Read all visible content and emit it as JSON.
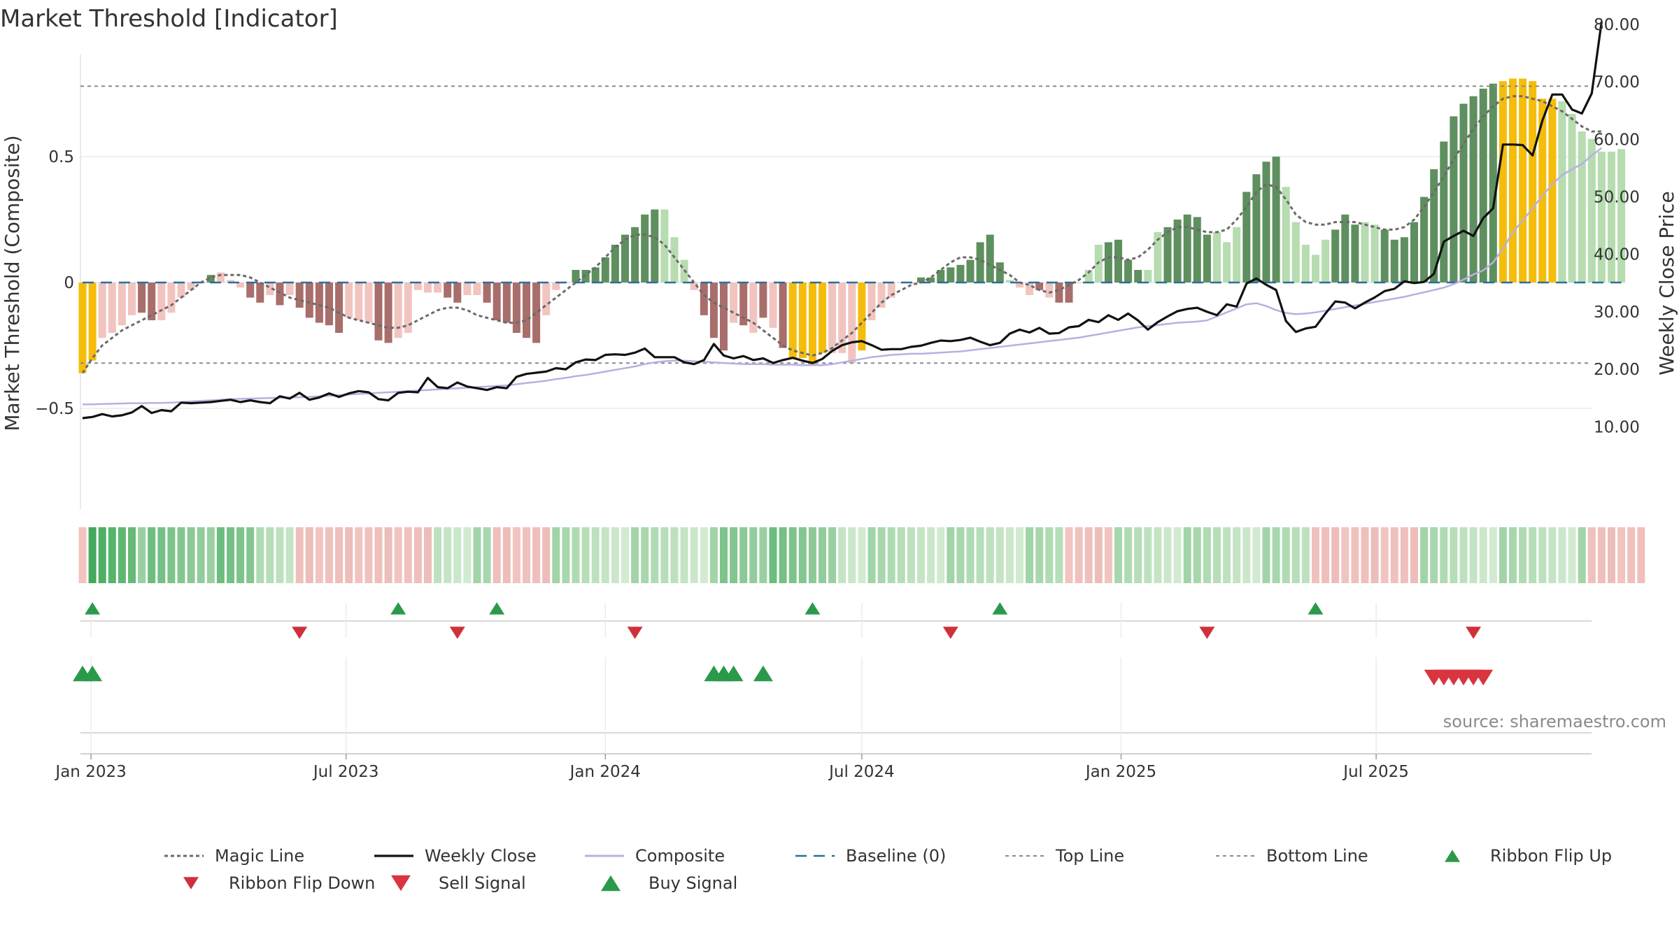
{
  "colors": {
    "strong_positive": "#5e8f5e",
    "weak_positive": "#b6dcb0",
    "strong_negative": "#a86e6b",
    "weak_negative": "#f1c4c0",
    "extreme": "#f5bd0b",
    "weekly_close": "#111111",
    "composite_line": "#b7b0e2",
    "magic_line": "#6a6a6a",
    "baseline": "#2d6e96",
    "threshold": "#8a8a8a",
    "buy": "#2a9a4a",
    "sell": "#d9353f"
  },
  "chart_data": {
    "type": "bar",
    "title": "Market Threshold [Indicator]",
    "ylabel": "Market Threshold (Composite)",
    "y2label": "Weekly Close Price",
    "ylim": [
      -0.9,
      0.9
    ],
    "y2lim": [
      5,
      85
    ],
    "yticks": [
      {
        "v": 0.5,
        "label": "0.5"
      },
      {
        "v": 0,
        "label": "0"
      },
      {
        "v": -0.5,
        "label": "−0.5"
      }
    ],
    "y2ticks": [
      {
        "v": 80,
        "label": "80.00"
      },
      {
        "v": 70,
        "label": "70.00"
      },
      {
        "v": 60,
        "label": "60.00"
      },
      {
        "v": 50,
        "label": "50.00"
      },
      {
        "v": 40,
        "label": "40.00"
      },
      {
        "v": 30,
        "label": "30.00"
      },
      {
        "v": 20,
        "label": "20.00"
      },
      {
        "v": 10,
        "label": "10.00"
      }
    ],
    "xticks": [
      {
        "date": "2023-01-01",
        "label": "Jan 2023"
      },
      {
        "date": "2023-07-01",
        "label": "Jul 2023"
      },
      {
        "date": "2024-01-01",
        "label": "Jan 2024"
      },
      {
        "date": "2024-07-01",
        "label": "Jul 2024"
      },
      {
        "date": "2025-01-01",
        "label": "Jan 2025"
      },
      {
        "date": "2025-07-01",
        "label": "Jul 2025"
      }
    ],
    "first_week": "2022-12-26",
    "top_line": 0.78,
    "bottom_line": -0.32,
    "composite": [
      -0.36,
      -0.31,
      -0.22,
      -0.2,
      -0.17,
      -0.13,
      -0.12,
      -0.15,
      -0.15,
      -0.12,
      -0.06,
      -0.03,
      0.0,
      0.03,
      0.04,
      0.01,
      -0.02,
      -0.06,
      -0.08,
      -0.05,
      -0.09,
      -0.05,
      -0.1,
      -0.14,
      -0.16,
      -0.17,
      -0.2,
      -0.14,
      -0.15,
      -0.16,
      -0.23,
      -0.24,
      -0.22,
      -0.2,
      -0.03,
      -0.04,
      -0.04,
      -0.06,
      -0.08,
      -0.05,
      -0.05,
      -0.08,
      -0.15,
      -0.16,
      -0.2,
      -0.22,
      -0.24,
      -0.13,
      -0.03,
      0.0,
      0.05,
      0.05,
      0.06,
      0.1,
      0.15,
      0.19,
      0.22,
      0.27,
      0.29,
      0.29,
      0.18,
      0.09,
      -0.03,
      -0.13,
      -0.22,
      -0.27,
      -0.16,
      -0.17,
      -0.2,
      -0.14,
      -0.18,
      -0.26,
      -0.3,
      -0.3,
      -0.33,
      -0.28,
      -0.28,
      -0.28,
      -0.32,
      -0.27,
      -0.15,
      -0.1,
      -0.06,
      0.0,
      0.0,
      0.02,
      0.02,
      0.05,
      0.06,
      0.07,
      0.09,
      0.16,
      0.19,
      0.08,
      0.01,
      -0.02,
      -0.05,
      -0.03,
      -0.06,
      -0.08,
      -0.08,
      0.0,
      0.05,
      0.15,
      0.16,
      0.17,
      0.09,
      0.05,
      0.05,
      0.2,
      0.22,
      0.25,
      0.27,
      0.26,
      0.19,
      0.2,
      0.16,
      0.22,
      0.36,
      0.43,
      0.48,
      0.5,
      0.38,
      0.24,
      0.15,
      0.11,
      0.17,
      0.21,
      0.27,
      0.23,
      0.24,
      0.23,
      0.21,
      0.17,
      0.18,
      0.24,
      0.34,
      0.45,
      0.56,
      0.66,
      0.71,
      0.74,
      0.77,
      0.79,
      0.8,
      0.81,
      0.81,
      0.8,
      0.73,
      0.73,
      0.72,
      0.67,
      0.6,
      0.57,
      0.52,
      0.52,
      0.53
    ],
    "bar_colors": [
      "Y",
      "Y",
      "W",
      "W",
      "W",
      "W",
      "S",
      "S",
      "W",
      "W",
      "W",
      "W",
      "P",
      "P",
      "W",
      "W",
      "W",
      "S",
      "S",
      "W",
      "S",
      "W",
      "S",
      "S",
      "S",
      "S",
      "S",
      "W",
      "W",
      "W",
      "S",
      "S",
      "W",
      "W",
      "W",
      "W",
      "W",
      "S",
      "S",
      "W",
      "W",
      "S",
      "S",
      "S",
      "S",
      "S",
      "S",
      "W",
      "W",
      "W",
      "P",
      "P",
      "P",
      "P",
      "P",
      "P",
      "P",
      "P",
      "P",
      "L",
      "L",
      "L",
      "W",
      "S",
      "S",
      "S",
      "W",
      "S",
      "W",
      "S",
      "W",
      "S",
      "Y",
      "Y",
      "Y",
      "Y",
      "W",
      "W",
      "W",
      "Y",
      "W",
      "W",
      "W",
      "W",
      "W",
      "P",
      "P",
      "P",
      "P",
      "P",
      "P",
      "P",
      "P",
      "P",
      "L",
      "W",
      "W",
      "S",
      "W",
      "S",
      "S",
      "W",
      "L",
      "L",
      "P",
      "P",
      "P",
      "P",
      "L",
      "L",
      "P",
      "P",
      "P",
      "P",
      "P",
      "L",
      "L",
      "L",
      "P",
      "P",
      "P",
      "P",
      "L",
      "L",
      "L",
      "L",
      "L",
      "P",
      "P",
      "P",
      "L",
      "L",
      "P",
      "P",
      "P",
      "P",
      "P",
      "P",
      "P",
      "P",
      "P",
      "P",
      "P",
      "P",
      "Y",
      "Y",
      "Y",
      "Y",
      "Y",
      "Y",
      "L",
      "L",
      "L",
      "L",
      "L",
      "L",
      "L",
      "P"
    ],
    "magic_line": [
      -0.36,
      -0.3,
      -0.25,
      -0.22,
      -0.19,
      -0.17,
      -0.15,
      -0.13,
      -0.11,
      -0.09,
      -0.06,
      -0.03,
      0.0,
      0.02,
      0.03,
      0.03,
      0.03,
      0.02,
      0.0,
      -0.02,
      -0.04,
      -0.06,
      -0.07,
      -0.08,
      -0.09,
      -0.1,
      -0.12,
      -0.14,
      -0.15,
      -0.16,
      -0.17,
      -0.18,
      -0.18,
      -0.17,
      -0.15,
      -0.13,
      -0.11,
      -0.1,
      -0.1,
      -0.11,
      -0.13,
      -0.14,
      -0.15,
      -0.16,
      -0.16,
      -0.15,
      -0.12,
      -0.09,
      -0.06,
      -0.03,
      0.0,
      0.03,
      0.06,
      0.1,
      0.14,
      0.17,
      0.19,
      0.19,
      0.18,
      0.15,
      0.1,
      0.05,
      0.0,
      -0.05,
      -0.08,
      -0.1,
      -0.12,
      -0.14,
      -0.16,
      -0.19,
      -0.22,
      -0.25,
      -0.27,
      -0.28,
      -0.29,
      -0.28,
      -0.26,
      -0.23,
      -0.2,
      -0.16,
      -0.12,
      -0.08,
      -0.05,
      -0.03,
      -0.01,
      0.0,
      0.02,
      0.05,
      0.08,
      0.1,
      0.1,
      0.09,
      0.07,
      0.05,
      0.03,
      0.0,
      -0.01,
      -0.03,
      -0.04,
      -0.03,
      -0.01,
      0.01,
      0.04,
      0.08,
      0.1,
      0.1,
      0.09,
      0.1,
      0.13,
      0.17,
      0.2,
      0.22,
      0.22,
      0.21,
      0.2,
      0.2,
      0.21,
      0.25,
      0.3,
      0.36,
      0.39,
      0.38,
      0.33,
      0.27,
      0.24,
      0.23,
      0.23,
      0.24,
      0.24,
      0.24,
      0.23,
      0.22,
      0.21,
      0.21,
      0.22,
      0.25,
      0.3,
      0.36,
      0.42,
      0.49,
      0.55,
      0.61,
      0.66,
      0.7,
      0.73,
      0.74,
      0.74,
      0.73,
      0.72,
      0.7,
      0.68,
      0.65,
      0.62,
      0.6,
      0.6
    ],
    "weekly_close": [
      11.5,
      11.7,
      12.2,
      11.8,
      12.0,
      12.5,
      13.6,
      12.4,
      12.9,
      12.7,
      14.2,
      14.1,
      14.2,
      14.3,
      14.5,
      14.7,
      14.3,
      14.6,
      14.3,
      14.1,
      15.3,
      14.9,
      15.9,
      14.7,
      15.1,
      15.8,
      15.2,
      15.8,
      16.2,
      16.0,
      14.8,
      14.6,
      15.9,
      16.1,
      16.0,
      18.5,
      16.9,
      16.7,
      17.7,
      17.0,
      16.7,
      16.4,
      16.9,
      16.7,
      18.7,
      19.2,
      19.4,
      19.6,
      20.2,
      20.0,
      21.2,
      21.7,
      21.6,
      22.5,
      22.6,
      22.5,
      22.9,
      23.6,
      22.1,
      22.1,
      22.1,
      21.2,
      20.9,
      21.6,
      24.4,
      22.4,
      21.9,
      22.3,
      21.6,
      21.9,
      21.1,
      21.6,
      22.0,
      21.5,
      21.1,
      21.8,
      23.2,
      24.2,
      24.7,
      24.9,
      24.2,
      23.4,
      23.5,
      23.5,
      23.9,
      24.1,
      24.6,
      25.0,
      24.9,
      25.1,
      25.5,
      24.8,
      24.2,
      24.6,
      26.2,
      26.9,
      26.4,
      27.2,
      26.2,
      26.3,
      27.3,
      27.5,
      28.6,
      28.2,
      29.4,
      28.6,
      29.7,
      28.5,
      26.9,
      28.2,
      29.2,
      30.1,
      30.5,
      30.7,
      30.0,
      29.4,
      31.3,
      30.9,
      34.9,
      35.8,
      34.7,
      33.8,
      28.4,
      26.5,
      27.1,
      27.4,
      29.7,
      31.8,
      31.6,
      30.6,
      31.6,
      32.5,
      33.6,
      34.0,
      35.3,
      35.0,
      35.2,
      36.6,
      42.2,
      43.2,
      44.1,
      43.2,
      46.3,
      48.0,
      59.1,
      59.1,
      59.0,
      57.2,
      63.3,
      67.8,
      67.8,
      65.2,
      64.5,
      68.0,
      80.5
    ],
    "composite_line": [
      13.9,
      13.9,
      13.95,
      14.0,
      14.05,
      14.1,
      14.1,
      14.15,
      14.15,
      14.2,
      14.3,
      14.4,
      14.5,
      14.6,
      14.7,
      14.8,
      14.85,
      14.9,
      14.95,
      15.0,
      15.05,
      15.1,
      15.15,
      15.2,
      15.3,
      15.4,
      15.5,
      15.6,
      15.7,
      15.8,
      15.9,
      16.0,
      16.1,
      16.2,
      16.3,
      16.4,
      16.5,
      16.6,
      16.7,
      16.8,
      16.9,
      17.0,
      17.1,
      17.2,
      17.4,
      17.6,
      17.8,
      18.0,
      18.3,
      18.5,
      18.8,
      19.0,
      19.3,
      19.6,
      19.9,
      20.2,
      20.5,
      20.9,
      21.2,
      21.4,
      21.5,
      21.5,
      21.4,
      21.3,
      21.2,
      21.1,
      21.0,
      20.9,
      20.9,
      20.9,
      20.8,
      20.8,
      20.8,
      20.7,
      20.7,
      20.7,
      20.9,
      21.2,
      21.5,
      21.8,
      22.1,
      22.3,
      22.5,
      22.6,
      22.7,
      22.7,
      22.8,
      22.9,
      23.0,
      23.1,
      23.3,
      23.5,
      23.7,
      23.9,
      24.1,
      24.3,
      24.5,
      24.7,
      24.9,
      25.1,
      25.3,
      25.5,
      25.8,
      26.1,
      26.4,
      26.7,
      27.0,
      27.3,
      27.5,
      27.7,
      27.9,
      28.1,
      28.2,
      28.3,
      28.5,
      29.2,
      29.9,
      30.6,
      31.3,
      31.5,
      31.0,
      30.3,
      29.8,
      29.6,
      29.7,
      29.9,
      30.2,
      30.5,
      30.8,
      31.1,
      31.4,
      31.7,
      32.0,
      32.3,
      32.6,
      33.0,
      33.4,
      33.8,
      34.2,
      34.8,
      35.6,
      36.5,
      37.2,
      38.6,
      41.0,
      43.8,
      45.9,
      48.0,
      50.2,
      52.2,
      53.8,
      54.8,
      55.7,
      57.2,
      58.5
    ],
    "ribbon_levels": [
      -1,
      3,
      3,
      3,
      3,
      3,
      2,
      2,
      2,
      2,
      2,
      2,
      2,
      2,
      2,
      2,
      2,
      2,
      1,
      1,
      1,
      1,
      0,
      0,
      0,
      0,
      0,
      0,
      0,
      0,
      0,
      0,
      0,
      0,
      0,
      0,
      1,
      1,
      1,
      1,
      1,
      1,
      0,
      0,
      0,
      0,
      0,
      0,
      1,
      1,
      1,
      1,
      1,
      1,
      1,
      1,
      1,
      1,
      1,
      1,
      1,
      1,
      1,
      1,
      1,
      2,
      2,
      2,
      2,
      2,
      2,
      2,
      2,
      2,
      2,
      2,
      2,
      1,
      1,
      1,
      1,
      1,
      1,
      1,
      1,
      1,
      1,
      1,
      1,
      1,
      1,
      1,
      1,
      1,
      1,
      1,
      1,
      1,
      1,
      1,
      0,
      0,
      0,
      0,
      0,
      1,
      1,
      1,
      1,
      1,
      1,
      1,
      1,
      1,
      1,
      1,
      1,
      1,
      1,
      1,
      1,
      1,
      1,
      1,
      1,
      0,
      0,
      0,
      0,
      0,
      0,
      0,
      0,
      0,
      0,
      0,
      1,
      1,
      1,
      1,
      1,
      1,
      1,
      1,
      1,
      1,
      1,
      1,
      1,
      1,
      1,
      1,
      1,
      0,
      0,
      0,
      0,
      0,
      0
    ],
    "ribbon_colors": [
      "#f1c4c0",
      "#36a452",
      "#43a95c",
      "#4daf63",
      "#56b46b",
      "#5fb772",
      "#66ba78",
      "#6dbd7e",
      "#75c084",
      "#7dc38a",
      "#84c690",
      "#8cc996",
      "#93cc9c",
      "#9ad0a1",
      "#a1d4a7",
      "#a8d7ad",
      "#afdbb3",
      "#b6deb8",
      "#bde1be",
      "#c4e4c4",
      "#cbe7ca",
      "#d1ead0",
      "#f1c4c0",
      "#efc1bd",
      "#eebfbb",
      "#ecbdb9"
    ],
    "ribbon_flip_up": [
      1,
      32,
      42,
      74,
      93,
      125
    ],
    "ribbon_flip_down": [
      22,
      38,
      56,
      88,
      114,
      141
    ],
    "buy_signal": [
      0,
      1,
      64,
      65,
      66,
      69
    ],
    "sell_signal": [
      137,
      138,
      139,
      140,
      141,
      142
    ]
  },
  "legend": [
    {
      "key": "magic",
      "label": "Magic Line"
    },
    {
      "key": "close",
      "label": "Weekly Close"
    },
    {
      "key": "composite",
      "label": "Composite"
    },
    {
      "key": "baseline",
      "label": "Baseline (0)"
    },
    {
      "key": "top",
      "label": "Top Line"
    },
    {
      "key": "bottom",
      "label": "Bottom Line"
    },
    {
      "key": "flipup",
      "label": "Ribbon Flip Up"
    },
    {
      "key": "flipdown",
      "label": "Ribbon Flip Down"
    },
    {
      "key": "sell",
      "label": "Sell Signal"
    },
    {
      "key": "buy",
      "label": "Buy Signal"
    }
  ],
  "source": "source: sharemaestro.com"
}
